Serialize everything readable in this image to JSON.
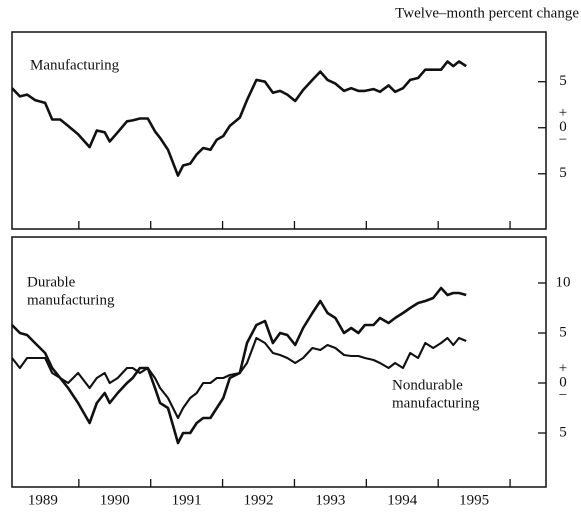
{
  "chart_data": [
    {
      "type": "line",
      "axis_label": "Twelve–month percent change",
      "xlim": [
        1988.57,
        1996.0
      ],
      "ylim": [
        -11.0,
        10.4
      ],
      "yticks": [
        {
          "value": 5,
          "label": "5"
        },
        {
          "value": 0,
          "label": "0"
        },
        {
          "value": -5,
          "label": "5"
        }
      ],
      "zero_signs": [
        "+",
        "−"
      ],
      "x": [
        1988.57,
        1988.68,
        1988.78,
        1988.89,
        1989.03,
        1989.13,
        1989.24,
        1989.35,
        1989.49,
        1989.65,
        1989.75,
        1989.86,
        1989.93,
        1990.04,
        1990.17,
        1990.25,
        1990.35,
        1990.46,
        1990.56,
        1990.63,
        1990.74,
        1990.88,
        1990.95,
        1991.05,
        1991.14,
        1991.23,
        1991.33,
        1991.42,
        1991.51,
        1991.6,
        1991.74,
        1991.84,
        1991.97,
        1992.09,
        1992.2,
        1992.3,
        1992.4,
        1992.51,
        1992.62,
        1992.75,
        1992.86,
        1992.96,
        1993.07,
        1993.19,
        1993.29,
        1993.39,
        1993.48,
        1993.6,
        1993.69,
        1993.81,
        1993.9,
        1994.01,
        1994.11,
        1994.22,
        1994.32,
        1994.43,
        1994.54,
        1994.63,
        1994.71,
        1994.79,
        1994.89
      ],
      "series": [
        {
          "label": [
            "Manufacturing"
          ],
          "color": "#111111",
          "values": [
            4.3,
            3.4,
            3.6,
            3.0,
            2.7,
            0.9,
            0.9,
            0.2,
            -0.7,
            -2.1,
            -0.3,
            -0.5,
            -1.5,
            -0.5,
            0.7,
            0.8,
            1.0,
            1.0,
            -0.4,
            -1.1,
            -2.4,
            -5.2,
            -4.1,
            -3.9,
            -2.9,
            -2.2,
            -2.4,
            -1.3,
            -0.9,
            0.2,
            1.1,
            3.0,
            5.2,
            5.0,
            3.8,
            4.0,
            3.6,
            2.9,
            4.1,
            5.2,
            6.1,
            5.2,
            4.8,
            4.0,
            4.3,
            4.0,
            4.0,
            4.2,
            3.9,
            4.6,
            3.9,
            4.3,
            5.2,
            5.4,
            6.3,
            6.3,
            6.3,
            7.2,
            6.7,
            7.2,
            6.7
          ]
        }
      ]
    },
    {
      "type": "line",
      "xlim": [
        1988.57,
        1996.0
      ],
      "ylim": [
        -10.4,
        14.6
      ],
      "yticks": [
        {
          "value": 10,
          "label": "10"
        },
        {
          "value": 5,
          "label": "5"
        },
        {
          "value": 0,
          "label": "0"
        },
        {
          "value": -5,
          "label": "5"
        }
      ],
      "zero_signs": [
        "+",
        "−"
      ],
      "xticks": [
        {
          "value": 1989,
          "label": "1989"
        },
        {
          "value": 1990,
          "label": "1990"
        },
        {
          "value": 1991,
          "label": "1991"
        },
        {
          "value": 1992,
          "label": "1992"
        },
        {
          "value": 1993,
          "label": "1993"
        },
        {
          "value": 1994,
          "label": "1994"
        },
        {
          "value": 1995,
          "label": "1995"
        }
      ],
      "x": [
        1988.57,
        1988.68,
        1988.78,
        1988.89,
        1989.03,
        1989.13,
        1989.24,
        1989.35,
        1989.49,
        1989.65,
        1989.75,
        1989.86,
        1989.93,
        1990.04,
        1990.17,
        1990.25,
        1990.35,
        1990.46,
        1990.56,
        1990.63,
        1990.74,
        1990.88,
        1990.95,
        1991.05,
        1991.14,
        1991.23,
        1991.33,
        1991.42,
        1991.51,
        1991.6,
        1991.74,
        1991.84,
        1991.97,
        1992.09,
        1992.2,
        1992.3,
        1992.4,
        1992.51,
        1992.62,
        1992.75,
        1992.86,
        1992.96,
        1993.07,
        1993.19,
        1993.29,
        1993.39,
        1993.48,
        1993.6,
        1993.69,
        1993.81,
        1993.9,
        1994.01,
        1994.11,
        1994.22,
        1994.32,
        1994.43,
        1994.54,
        1994.63,
        1994.71,
        1994.79,
        1994.89
      ],
      "series": [
        {
          "label": [
            "Durable",
            "manufacturing"
          ],
          "color": "#111111",
          "values": [
            5.8,
            5.0,
            4.8,
            4.0,
            3.0,
            1.5,
            0.5,
            -0.5,
            -2.0,
            -4.0,
            -2.0,
            -1.0,
            -2.0,
            -1.0,
            0.0,
            0.5,
            1.5,
            1.5,
            -0.5,
            -2.0,
            -2.5,
            -6.0,
            -5.0,
            -5.0,
            -4.0,
            -3.5,
            -3.5,
            -2.5,
            -1.5,
            0.5,
            1.0,
            4.0,
            5.8,
            6.2,
            4.0,
            5.0,
            4.8,
            3.8,
            5.5,
            7.0,
            8.2,
            7.0,
            6.5,
            5.0,
            5.5,
            5.0,
            5.8,
            5.8,
            6.5,
            6.0,
            6.5,
            7.0,
            7.5,
            8.0,
            8.2,
            8.5,
            9.5,
            8.8,
            9.0,
            9.0,
            8.8
          ]
        },
        {
          "label": [
            "Nondurable",
            "manufacturing"
          ],
          "color": "#111111",
          "values": [
            2.5,
            1.5,
            2.5,
            2.5,
            2.5,
            1.0,
            0.5,
            0.0,
            1.0,
            -0.5,
            0.5,
            1.0,
            0.0,
            0.5,
            1.5,
            1.5,
            1.0,
            1.5,
            0.5,
            -0.5,
            -1.5,
            -3.5,
            -2.5,
            -1.5,
            -1.0,
            0.0,
            0.0,
            0.5,
            0.5,
            0.8,
            1.0,
            2.0,
            4.5,
            4.0,
            3.0,
            2.8,
            2.5,
            2.0,
            2.5,
            3.5,
            3.3,
            3.8,
            3.5,
            2.8,
            2.7,
            2.7,
            2.5,
            2.3,
            2.0,
            1.5,
            2.0,
            1.5,
            3.0,
            2.5,
            4.0,
            3.5,
            4.0,
            4.5,
            3.8,
            4.5,
            4.2
          ]
        }
      ]
    }
  ]
}
